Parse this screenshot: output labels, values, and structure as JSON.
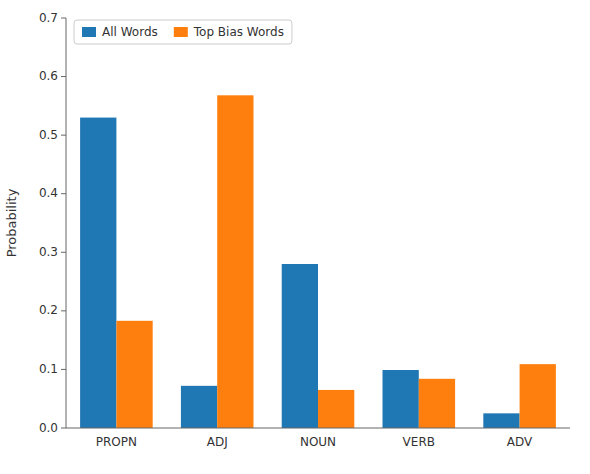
{
  "chart_data": {
    "type": "bar",
    "categories": [
      "PROPN",
      "ADJ",
      "NOUN",
      "VERB",
      "ADV"
    ],
    "series": [
      {
        "name": "All Words",
        "color": "#1f77b4",
        "values": [
          0.53,
          0.072,
          0.28,
          0.099,
          0.025
        ]
      },
      {
        "name": "Top Bias Words",
        "color": "#ff7f0e",
        "values": [
          0.183,
          0.568,
          0.065,
          0.084,
          0.109
        ]
      }
    ],
    "ylabel": "Probability",
    "ylim": [
      0.0,
      0.7
    ],
    "yticks": [
      {
        "value": 0.0,
        "label": "0.0"
      },
      0.1,
      0.2,
      0.3,
      0.4,
      0.5,
      0.6,
      0.7
    ],
    "legend": "upper left",
    "grid": false
  }
}
